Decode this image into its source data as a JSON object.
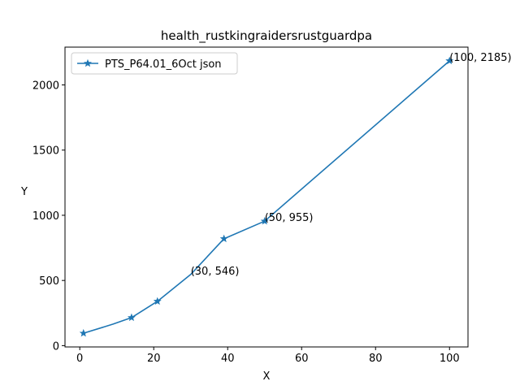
{
  "chart_data": {
    "type": "line",
    "title": "health_rustkingraidersrustguardpa",
    "xlabel": "X",
    "ylabel": "Y",
    "xlim": [
      -4,
      105
    ],
    "ylim": [
      -10,
      2290
    ],
    "xticks": [
      0,
      20,
      40,
      60,
      80,
      100
    ],
    "yticks": [
      0,
      500,
      1000,
      1500,
      2000
    ],
    "grid": false,
    "legend_position": "upper-left",
    "series": [
      {
        "name": "PTS_P64.01_6Oct json",
        "color": "#1f77b4",
        "marker": "star",
        "x": [
          1,
          9,
          14,
          21,
          30,
          39,
          50,
          100
        ],
        "y": [
          95,
          165,
          215,
          340,
          546,
          820,
          955,
          2185
        ],
        "marker_x": [
          1,
          14,
          21,
          39,
          50,
          100
        ],
        "marker_y": [
          95,
          215,
          340,
          820,
          955,
          2185
        ]
      }
    ],
    "annotations": [
      {
        "text": "(30, 546)",
        "x": 30,
        "y": 546
      },
      {
        "text": "(50, 955)",
        "x": 50,
        "y": 955
      },
      {
        "text": "(100, 2185)",
        "x": 100,
        "y": 2185
      }
    ]
  }
}
